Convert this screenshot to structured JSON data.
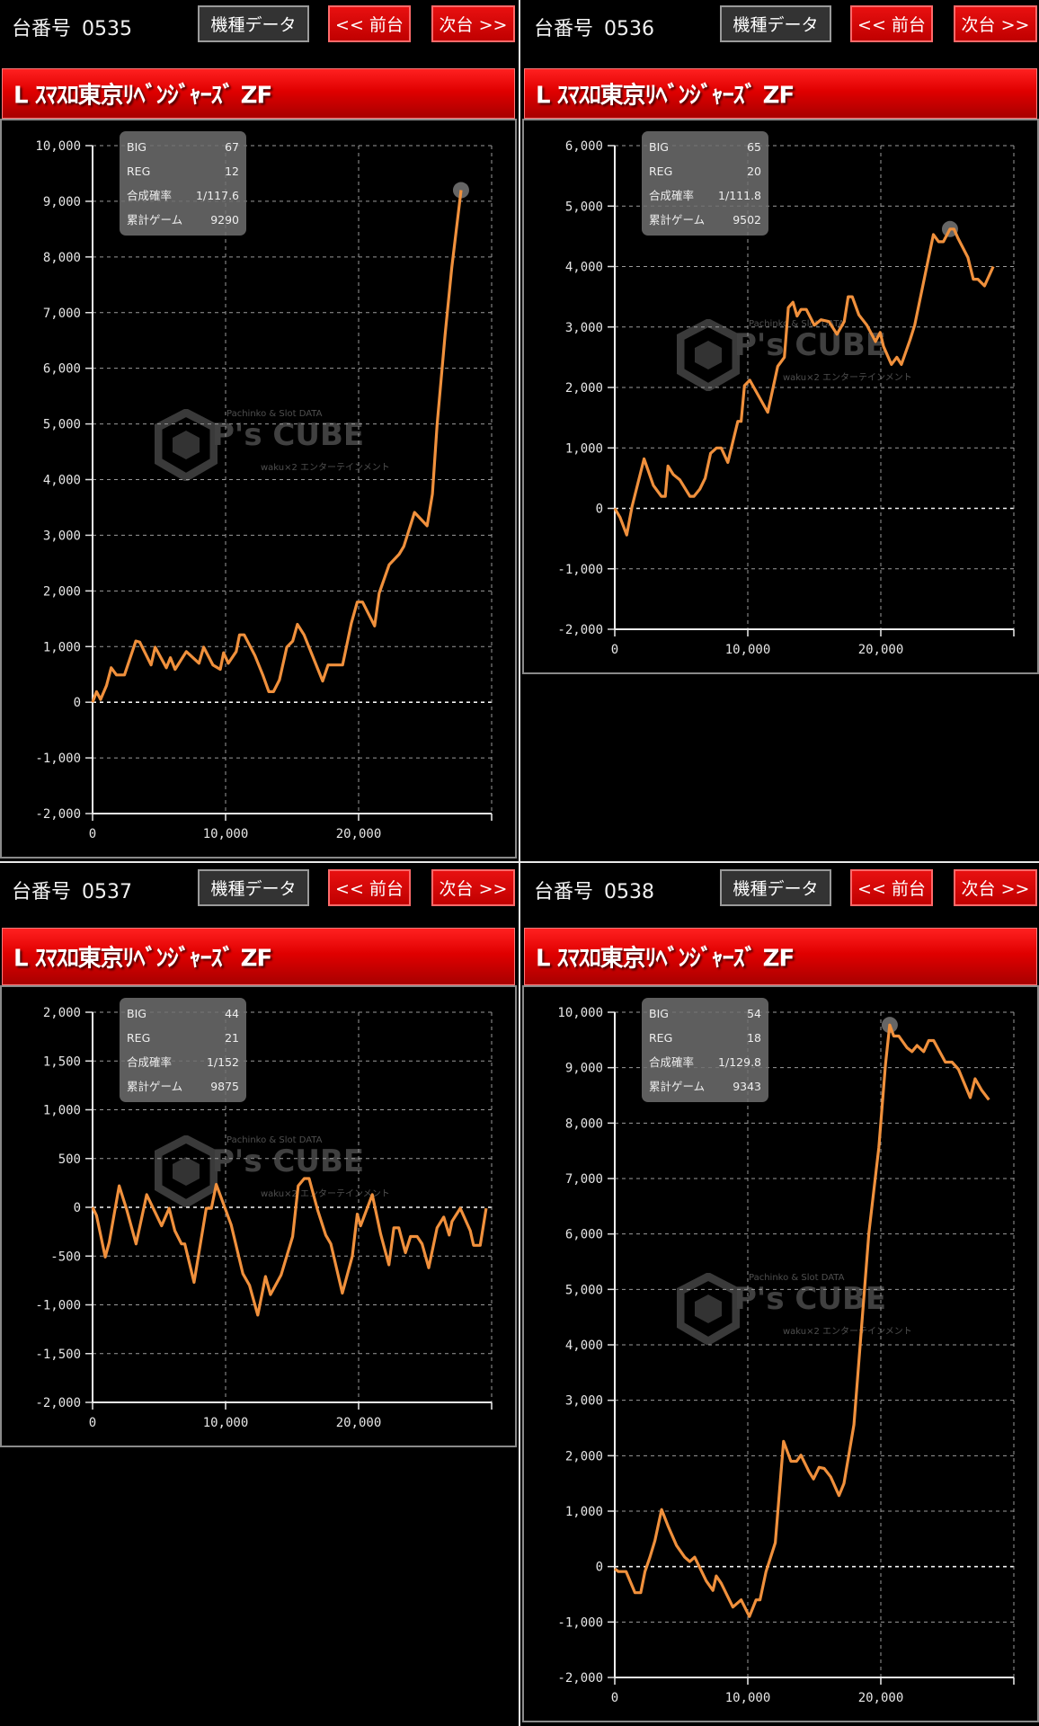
{
  "common": {
    "unit_prefix": "台番号",
    "model_data_button": "機種データ",
    "prev_button": "<< 前台",
    "next_button": "次台 >>",
    "machine_title": "L ｽﾏｽﾛ東京ﾘﾍﾞﾝｼﾞｬｰｽﾞ  ZF",
    "stat_labels": [
      "BIG",
      "REG",
      "合成確率",
      "累計ゲーム"
    ],
    "watermark": {
      "top": "Pachinko & Slot DATA",
      "main": "P's CUBE",
      "sub": "waku×2 エンターテインメント"
    },
    "colors": {
      "line": "#f0903c",
      "title_bar": "#e00000",
      "button_red": "#d40000",
      "background": "#000000"
    }
  },
  "panels": [
    {
      "unit": "0535",
      "stats": {
        "BIG": "67",
        "REG": "12",
        "合成確率": "1/117.6",
        "累計ゲーム": "9290"
      }
    },
    {
      "unit": "0536",
      "stats": {
        "BIG": "65",
        "REG": "20",
        "合成確率": "1/111.8",
        "累計ゲーム": "9502"
      }
    },
    {
      "unit": "0537",
      "stats": {
        "BIG": "44",
        "REG": "21",
        "合成確率": "1/152",
        "累計ゲーム": "9875"
      }
    },
    {
      "unit": "0538",
      "stats": {
        "BIG": "54",
        "REG": "18",
        "合成確率": "1/129.8",
        "累計ゲーム": "9343"
      }
    }
  ],
  "chart_data": [
    {
      "type": "line",
      "unit": "0535",
      "grid": true,
      "xlim": [
        0,
        30000
      ],
      "ylim": [
        -2000,
        10000
      ],
      "xticks": [
        0,
        10000,
        20000
      ],
      "xtick_labels": [
        "0",
        "10,000",
        "20,000"
      ],
      "yticks": [
        10000,
        9000,
        8000,
        7000,
        6000,
        5000,
        4000,
        3000,
        2000,
        1000,
        0,
        -1000,
        -2000
      ],
      "ytick_labels": [
        "10,000",
        "9,000",
        "8,000",
        "7,000",
        "6,000",
        "5,000",
        "4,000",
        "3,000",
        "2,000",
        "1,000",
        "0",
        "-1,000",
        "-2,000"
      ],
      "peak_marker": true,
      "points": [
        [
          0,
          0
        ],
        [
          300,
          190
        ],
        [
          600,
          50
        ],
        [
          1050,
          300
        ],
        [
          1400,
          620
        ],
        [
          1800,
          490
        ],
        [
          2400,
          490
        ],
        [
          3250,
          1100
        ],
        [
          3550,
          1080
        ],
        [
          4400,
          670
        ],
        [
          4700,
          990
        ],
        [
          5550,
          620
        ],
        [
          5850,
          800
        ],
        [
          6200,
          590
        ],
        [
          7050,
          910
        ],
        [
          8000,
          700
        ],
        [
          8350,
          990
        ],
        [
          9050,
          670
        ],
        [
          9600,
          590
        ],
        [
          9850,
          890
        ],
        [
          10200,
          700
        ],
        [
          10800,
          910
        ],
        [
          11050,
          1210
        ],
        [
          11400,
          1210
        ],
        [
          12200,
          840
        ],
        [
          12800,
          490
        ],
        [
          13250,
          190
        ],
        [
          13600,
          190
        ],
        [
          14050,
          400
        ],
        [
          14600,
          990
        ],
        [
          15050,
          1100
        ],
        [
          15400,
          1400
        ],
        [
          15900,
          1210
        ],
        [
          17300,
          380
        ],
        [
          17700,
          670
        ],
        [
          18800,
          670
        ],
        [
          19450,
          1420
        ],
        [
          19900,
          1800
        ],
        [
          20300,
          1800
        ],
        [
          21200,
          1370
        ],
        [
          21550,
          1960
        ],
        [
          22300,
          2470
        ],
        [
          23050,
          2660
        ],
        [
          23400,
          2800
        ],
        [
          24200,
          3410
        ],
        [
          25150,
          3170
        ],
        [
          25550,
          3740
        ],
        [
          25900,
          4980
        ],
        [
          26500,
          6600
        ],
        [
          27000,
          7800
        ],
        [
          27700,
          9200
        ]
      ]
    },
    {
      "type": "line",
      "unit": "0536",
      "grid": true,
      "xlim": [
        0,
        30000
      ],
      "ylim": [
        -2000,
        6000
      ],
      "xticks": [
        0,
        10000,
        20000
      ],
      "xtick_labels": [
        "0",
        "10,000",
        "20,000"
      ],
      "yticks": [
        6000,
        5000,
        4000,
        3000,
        2000,
        1000,
        0,
        -1000,
        -2000
      ],
      "ytick_labels": [
        "6,000",
        "5,000",
        "4,000",
        "3,000",
        "2,000",
        "1,000",
        "0",
        "-1,000",
        "-2,000"
      ],
      "peak_marker": true,
      "points": [
        [
          0,
          0
        ],
        [
          400,
          -150
        ],
        [
          900,
          -440
        ],
        [
          1300,
          30
        ],
        [
          2200,
          820
        ],
        [
          2900,
          380
        ],
        [
          3500,
          200
        ],
        [
          3800,
          200
        ],
        [
          4000,
          700
        ],
        [
          4400,
          560
        ],
        [
          4900,
          470
        ],
        [
          5650,
          200
        ],
        [
          5950,
          200
        ],
        [
          6400,
          320
        ],
        [
          6800,
          500
        ],
        [
          7200,
          910
        ],
        [
          7650,
          1000
        ],
        [
          8000,
          1000
        ],
        [
          8500,
          760
        ],
        [
          9250,
          1440
        ],
        [
          9500,
          1440
        ],
        [
          9750,
          2030
        ],
        [
          10150,
          2120
        ],
        [
          11500,
          1590
        ],
        [
          12250,
          2350
        ],
        [
          12750,
          2500
        ],
        [
          13050,
          3320
        ],
        [
          13400,
          3410
        ],
        [
          13700,
          3180
        ],
        [
          14000,
          3290
        ],
        [
          14400,
          3290
        ],
        [
          15000,
          3030
        ],
        [
          15500,
          3120
        ],
        [
          16100,
          3090
        ],
        [
          16700,
          2880
        ],
        [
          17250,
          3090
        ],
        [
          17550,
          3500
        ],
        [
          17850,
          3500
        ],
        [
          18350,
          3200
        ],
        [
          18950,
          3030
        ],
        [
          19600,
          2760
        ],
        [
          19950,
          2910
        ],
        [
          20200,
          2680
        ],
        [
          20800,
          2380
        ],
        [
          21200,
          2500
        ],
        [
          21550,
          2380
        ],
        [
          22200,
          2790
        ],
        [
          22550,
          3030
        ],
        [
          23950,
          4530
        ],
        [
          24350,
          4410
        ],
        [
          24700,
          4410
        ],
        [
          25200,
          4620
        ],
        [
          25500,
          4620
        ],
        [
          25800,
          4470
        ],
        [
          26550,
          4150
        ],
        [
          26950,
          3790
        ],
        [
          27300,
          3790
        ],
        [
          27800,
          3680
        ],
        [
          28450,
          4000
        ]
      ]
    },
    {
      "type": "line",
      "unit": "0537",
      "grid": true,
      "xlim": [
        0,
        30000
      ],
      "ylim": [
        -2000,
        2000
      ],
      "xticks": [
        0,
        10000,
        20000
      ],
      "xtick_labels": [
        "0",
        "10,000",
        "20,000"
      ],
      "yticks": [
        2000,
        1500,
        1000,
        500,
        0,
        -500,
        -1000,
        -1500,
        -2000
      ],
      "ytick_labels": [
        "2,000",
        "1,500",
        "1,000",
        "500",
        "0",
        "-500",
        "-1,000",
        "-1,500",
        "-2,000"
      ],
      "peak_marker": false,
      "points": [
        [
          0,
          0
        ],
        [
          300,
          -85
        ],
        [
          950,
          -510
        ],
        [
          1250,
          -360
        ],
        [
          2000,
          220
        ],
        [
          2570,
          -25
        ],
        [
          3270,
          -375
        ],
        [
          4070,
          130
        ],
        [
          5190,
          -190
        ],
        [
          5760,
          -10
        ],
        [
          6180,
          -240
        ],
        [
          6680,
          -375
        ],
        [
          6930,
          -375
        ],
        [
          7630,
          -770
        ],
        [
          8550,
          -10
        ],
        [
          8930,
          -10
        ],
        [
          9300,
          235
        ],
        [
          10420,
          -180
        ],
        [
          11300,
          -680
        ],
        [
          11800,
          -800
        ],
        [
          12420,
          -1105
        ],
        [
          13000,
          -710
        ],
        [
          13370,
          -895
        ],
        [
          14170,
          -695
        ],
        [
          15040,
          -300
        ],
        [
          15460,
          220
        ],
        [
          15910,
          295
        ],
        [
          16280,
          295
        ],
        [
          16910,
          -25
        ],
        [
          17530,
          -285
        ],
        [
          17910,
          -375
        ],
        [
          18780,
          -880
        ],
        [
          19530,
          -500
        ],
        [
          19900,
          -70
        ],
        [
          20150,
          -190
        ],
        [
          21030,
          130
        ],
        [
          21650,
          -270
        ],
        [
          22280,
          -590
        ],
        [
          22650,
          -210
        ],
        [
          23020,
          -210
        ],
        [
          23520,
          -465
        ],
        [
          23900,
          -300
        ],
        [
          24400,
          -300
        ],
        [
          24770,
          -375
        ],
        [
          25270,
          -620
        ],
        [
          25900,
          -210
        ],
        [
          26400,
          -100
        ],
        [
          26810,
          -285
        ],
        [
          27020,
          -145
        ],
        [
          27640,
          -10
        ],
        [
          28390,
          -240
        ],
        [
          28640,
          -390
        ],
        [
          29140,
          -390
        ],
        [
          29590,
          -10
        ]
      ]
    },
    {
      "type": "line",
      "unit": "0538",
      "grid": true,
      "xlim": [
        0,
        30000
      ],
      "ylim": [
        -2000,
        10000
      ],
      "xticks": [
        0,
        10000,
        20000
      ],
      "xtick_labels": [
        "0",
        "10,000",
        "20,000"
      ],
      "yticks": [
        10000,
        9000,
        8000,
        7000,
        6000,
        5000,
        4000,
        3000,
        2000,
        1000,
        0,
        -1000,
        -2000
      ],
      "ytick_labels": [
        "10,000",
        "9,000",
        "8,000",
        "7,000",
        "6,000",
        "5,000",
        "4,000",
        "3,000",
        "2,000",
        "1,000",
        "0",
        "-1,000",
        "-2,000"
      ],
      "peak_marker": true,
      "points": [
        [
          0,
          -40
        ],
        [
          270,
          -90
        ],
        [
          850,
          -90
        ],
        [
          1520,
          -470
        ],
        [
          1950,
          -470
        ],
        [
          2270,
          -90
        ],
        [
          2640,
          170
        ],
        [
          3020,
          470
        ],
        [
          3520,
          1030
        ],
        [
          4010,
          730
        ],
        [
          4640,
          380
        ],
        [
          5260,
          170
        ],
        [
          5640,
          90
        ],
        [
          6010,
          170
        ],
        [
          6880,
          -260
        ],
        [
          7380,
          -430
        ],
        [
          7630,
          -170
        ],
        [
          8000,
          -300
        ],
        [
          8880,
          -730
        ],
        [
          9500,
          -600
        ],
        [
          10120,
          -900
        ],
        [
          10620,
          -600
        ],
        [
          10920,
          -600
        ],
        [
          11370,
          -90
        ],
        [
          12070,
          430
        ],
        [
          12690,
          2260
        ],
        [
          13240,
          1900
        ],
        [
          13670,
          1900
        ],
        [
          13990,
          2010
        ],
        [
          14610,
          1710
        ],
        [
          14940,
          1580
        ],
        [
          15360,
          1790
        ],
        [
          15740,
          1770
        ],
        [
          16230,
          1620
        ],
        [
          16860,
          1280
        ],
        [
          17230,
          1500
        ],
        [
          17980,
          2560
        ],
        [
          19110,
          6030
        ],
        [
          19850,
          7560
        ],
        [
          20350,
          9060
        ],
        [
          20670,
          9770
        ],
        [
          20970,
          9570
        ],
        [
          21350,
          9570
        ],
        [
          21970,
          9360
        ],
        [
          22350,
          9290
        ],
        [
          22720,
          9400
        ],
        [
          23220,
          9290
        ],
        [
          23600,
          9490
        ],
        [
          23970,
          9490
        ],
        [
          24850,
          9100
        ],
        [
          25350,
          9100
        ],
        [
          25840,
          8970
        ],
        [
          26720,
          8460
        ],
        [
          27090,
          8800
        ],
        [
          27590,
          8590
        ],
        [
          28130,
          8420
        ]
      ]
    }
  ]
}
